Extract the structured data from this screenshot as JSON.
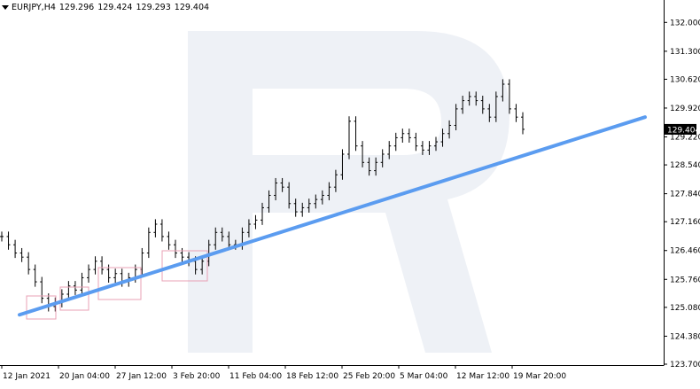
{
  "header": {
    "symbol": "EURJPY,H4",
    "open": "129.296",
    "high": "129.424",
    "low": "129.293",
    "close": "129.404"
  },
  "colors": {
    "background": "#ffffff",
    "candles": "#000000",
    "trendline": "#5b9cf0",
    "highlight_boxes": "#e8a0b4",
    "watermark": "#eef1f6",
    "price_tag_bg": "#000000",
    "price_tag_text": "#ffffff"
  },
  "chart_data": {
    "type": "line",
    "title": "",
    "xlabel": "",
    "ylabel": "",
    "grid": false,
    "ylim": [
      123.7,
      132.2
    ],
    "y_ticks": [
      "132.000",
      "131.300",
      "130.620",
      "129.920",
      "129.220",
      "128.540",
      "127.840",
      "127.160",
      "126.460",
      "125.760",
      "125.080",
      "124.380",
      "123.700"
    ],
    "x_ticks": [
      "12 Jan 2021",
      "20 Jan 04:00",
      "27 Jan 12:00",
      "3 Feb 20:00",
      "11 Feb 04:00",
      "18 Feb 12:00",
      "25 Feb 20:00",
      "5 Mar 04:00",
      "12 Mar 12:00",
      "19 Mar 20:00"
    ],
    "current_price": "129.404",
    "series": [
      {
        "values": [
          126.8,
          126.6,
          126.4,
          126.3,
          126.0,
          125.7,
          125.3,
          125.1,
          125.2,
          125.4,
          125.6,
          125.5,
          125.8,
          126.0,
          126.2,
          126.0,
          125.8,
          125.9,
          125.7,
          125.8,
          126.0,
          126.4,
          126.9,
          127.1,
          126.8,
          126.6,
          126.4,
          126.3,
          126.2,
          126.0,
          126.2,
          126.6,
          126.9,
          126.8,
          126.6,
          126.6,
          126.9,
          127.1,
          127.2,
          127.5,
          127.8,
          128.1,
          128.0,
          127.6,
          127.4,
          127.5,
          127.6,
          127.7,
          127.8,
          128.0,
          128.3,
          128.8,
          129.6,
          129.0,
          128.6,
          128.4,
          128.6,
          128.8,
          129.0,
          129.2,
          129.3,
          129.2,
          129.0,
          128.9,
          129.0,
          129.1,
          129.3,
          129.5,
          129.9,
          130.1,
          130.2,
          130.1,
          129.9,
          129.7,
          130.2,
          130.5,
          129.9,
          129.7,
          129.404
        ]
      },
      {
        "name": "",
        "x": [
          "12 Jan 2021",
          "19 Mar 20:00"
        ],
        "values": [
          124.9,
          129.7
        ]
      }
    ]
  }
}
